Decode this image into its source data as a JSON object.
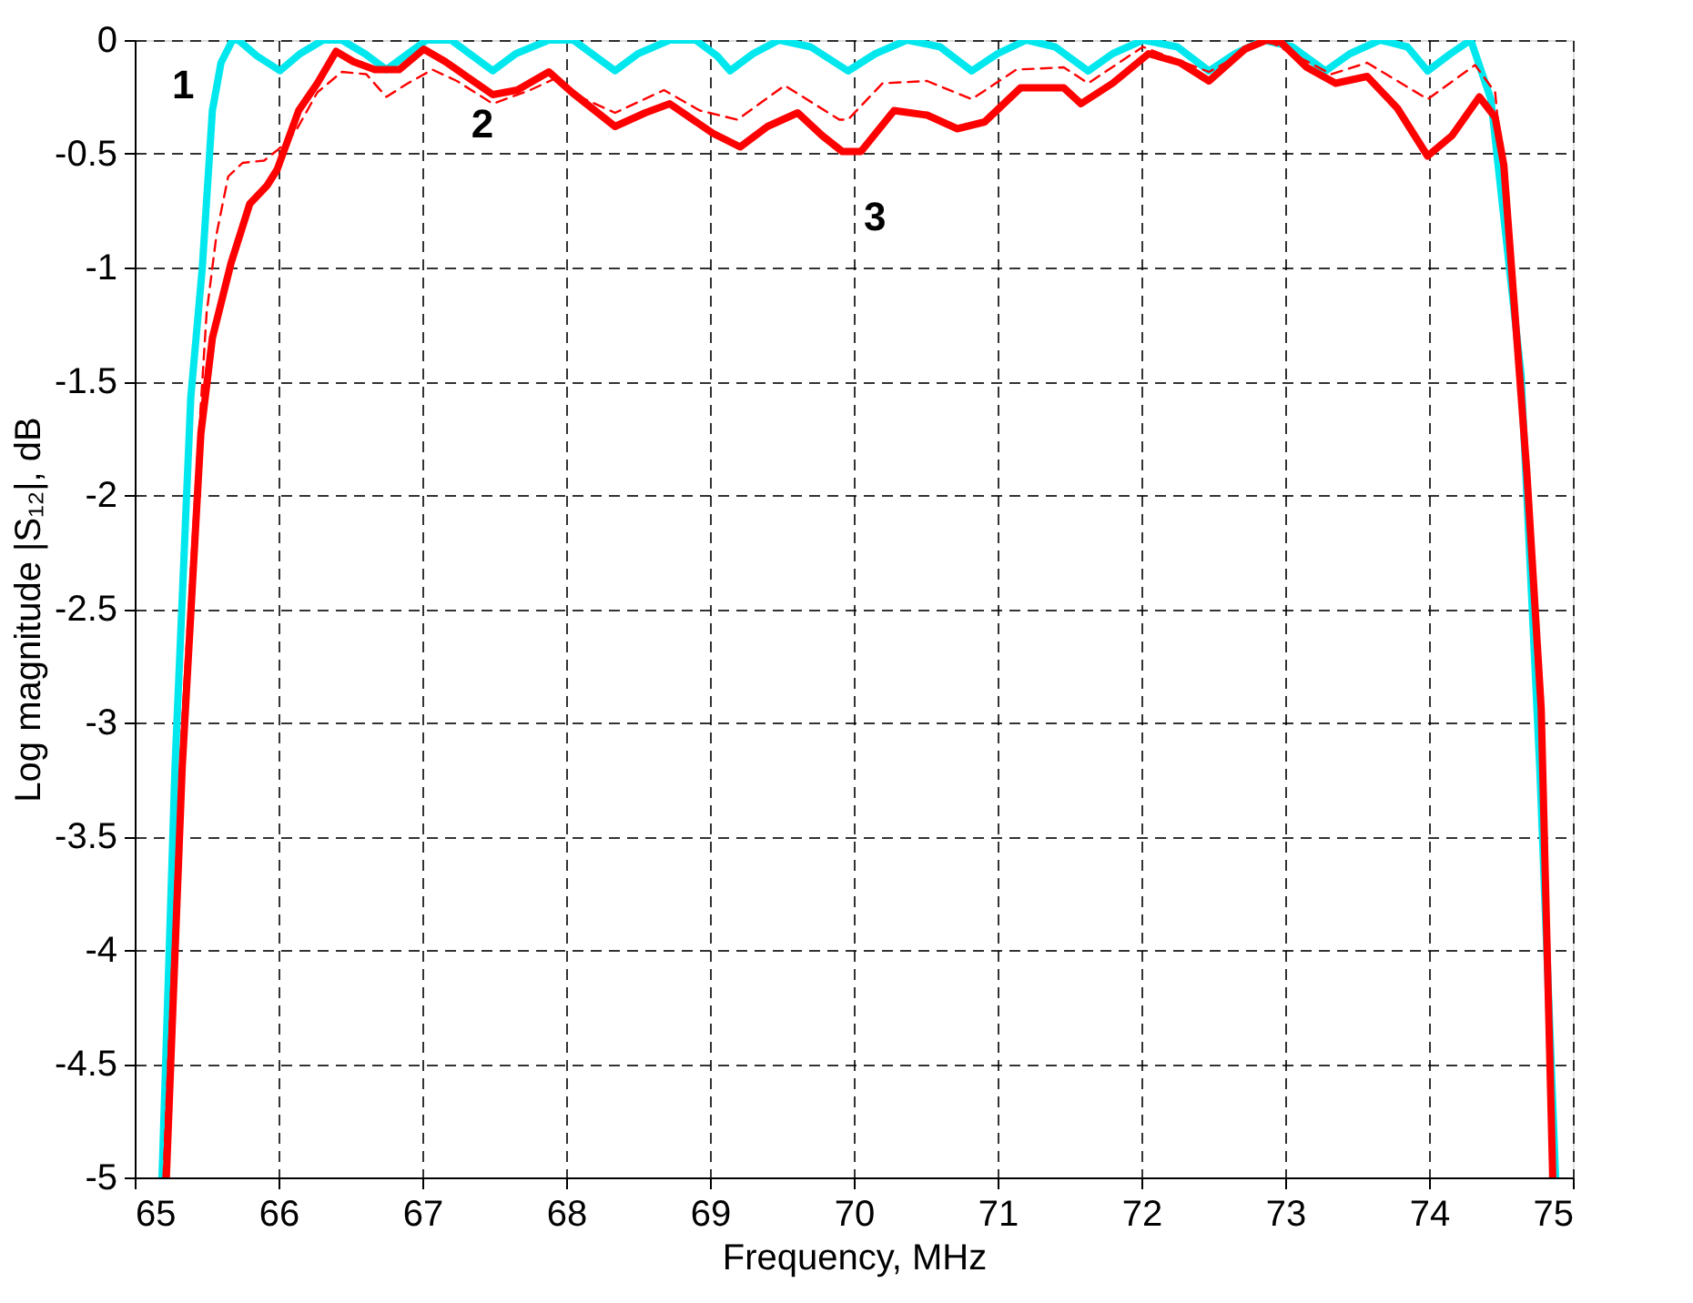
{
  "chart_data": {
    "type": "line",
    "xlabel": "Frequency, MHz",
    "ylabel": "Log magnitude |S₁₂|, dB",
    "xlim": [
      65,
      75
    ],
    "xticks": [
      65,
      66,
      67,
      68,
      69,
      70,
      71,
      72,
      73,
      74,
      75
    ],
    "ylim": [
      -5,
      0
    ],
    "yticks": [
      -5,
      -4.5,
      -4,
      -3.5,
      -3,
      -2.5,
      -2,
      -1.5,
      -1,
      -0.5,
      0
    ],
    "grid": true,
    "legend": false,
    "marker": "none",
    "series": [
      {
        "name": "1",
        "color": "#00e8ee",
        "line_style": "solid",
        "x": [
          65.19,
          65.28,
          65.39,
          65.47,
          65.54,
          65.6,
          65.68,
          65.72,
          65.85,
          66.01,
          66.15,
          66.31,
          66.44,
          66.6,
          66.75,
          66.9,
          67.03,
          67.2,
          67.35,
          67.49,
          67.65,
          67.88,
          68.05,
          68.2,
          68.34,
          68.5,
          68.72,
          68.9,
          69.05,
          69.14,
          69.3,
          69.48,
          69.7,
          69.96,
          70.15,
          70.37,
          70.6,
          70.82,
          71.0,
          71.2,
          71.4,
          71.63,
          71.8,
          72.01,
          72.25,
          72.47,
          72.65,
          72.85,
          73.05,
          73.28,
          73.45,
          73.66,
          73.85,
          73.99,
          74.15,
          74.29,
          74.43,
          74.64,
          74.77,
          74.88
        ],
        "values": [
          -5,
          -3.2,
          -1.57,
          -1.0,
          -0.31,
          -0.1,
          0,
          0,
          -0.07,
          -0.135,
          -0.06,
          0,
          0,
          -0.06,
          -0.13,
          -0.06,
          0,
          0,
          -0.07,
          -0.135,
          -0.06,
          0,
          0,
          -0.07,
          -0.135,
          -0.06,
          0,
          0,
          -0.07,
          -0.135,
          -0.06,
          0,
          -0.03,
          -0.136,
          -0.06,
          0,
          -0.03,
          -0.136,
          -0.06,
          0,
          -0.03,
          -0.136,
          -0.06,
          0,
          -0.03,
          -0.136,
          -0.06,
          0,
          -0.03,
          -0.136,
          -0.06,
          0,
          -0.03,
          -0.136,
          -0.06,
          0,
          -0.26,
          -1.47,
          -3.2,
          -5
        ]
      },
      {
        "name": "2",
        "color": "#ff0000",
        "line_style": "dashed",
        "x": [
          65.2,
          65.33,
          65.43,
          65.5,
          65.57,
          65.65,
          65.75,
          65.9,
          66.0,
          66.12,
          66.27,
          66.44,
          66.61,
          66.75,
          66.9,
          67.07,
          67.24,
          67.49,
          67.75,
          67.92,
          68.13,
          68.34,
          68.68,
          68.93,
          69.19,
          69.52,
          69.9,
          69.96,
          70.2,
          70.51,
          70.82,
          71.13,
          71.46,
          71.63,
          72.01,
          72.47,
          72.87,
          73.32,
          73.57,
          73.99,
          74.32,
          74.46,
          74.6,
          74.7,
          74.78,
          74.86
        ],
        "values": [
          -5,
          -3.0,
          -1.9,
          -1.2,
          -0.85,
          -0.6,
          -0.54,
          -0.53,
          -0.48,
          -0.4,
          -0.23,
          -0.14,
          -0.15,
          -0.25,
          -0.19,
          -0.13,
          -0.18,
          -0.28,
          -0.22,
          -0.17,
          -0.26,
          -0.32,
          -0.22,
          -0.31,
          -0.35,
          -0.2,
          -0.35,
          -0.35,
          -0.19,
          -0.18,
          -0.26,
          -0.13,
          -0.12,
          -0.19,
          -0.03,
          -0.14,
          0,
          -0.15,
          -0.1,
          -0.26,
          -0.11,
          -0.23,
          -1.2,
          -2.0,
          -2.94,
          -5
        ]
      },
      {
        "name": "3",
        "color": "#ff0000",
        "line_style": "solid",
        "x": [
          65.22,
          65.33,
          65.46,
          65.54,
          65.67,
          65.8,
          65.92,
          65.99,
          66.14,
          66.27,
          66.4,
          66.52,
          66.67,
          66.84,
          67.01,
          67.16,
          67.49,
          67.66,
          67.88,
          68.04,
          68.34,
          68.55,
          68.72,
          69.02,
          69.21,
          69.4,
          69.61,
          69.78,
          69.92,
          70.05,
          70.28,
          70.51,
          70.72,
          70.91,
          71.16,
          71.46,
          71.58,
          71.8,
          72.05,
          72.27,
          72.47,
          72.72,
          72.87,
          72.97,
          73.15,
          73.35,
          73.57,
          73.78,
          73.99,
          74.16,
          74.35,
          74.46,
          74.52,
          74.68,
          74.78,
          74.86
        ],
        "values": [
          -5,
          -3.2,
          -1.73,
          -1.31,
          -0.98,
          -0.72,
          -0.64,
          -0.57,
          -0.31,
          -0.19,
          -0.05,
          -0.095,
          -0.13,
          -0.13,
          -0.04,
          -0.095,
          -0.24,
          -0.22,
          -0.14,
          -0.23,
          -0.38,
          -0.32,
          -0.28,
          -0.41,
          -0.47,
          -0.38,
          -0.32,
          -0.42,
          -0.49,
          -0.49,
          -0.31,
          -0.33,
          -0.39,
          -0.36,
          -0.21,
          -0.21,
          -0.28,
          -0.19,
          -0.06,
          -0.1,
          -0.18,
          -0.04,
          0,
          -0.01,
          -0.12,
          -0.19,
          -0.16,
          -0.3,
          -0.51,
          -0.42,
          -0.25,
          -0.34,
          -0.55,
          -1.9,
          -2.94,
          -5
        ]
      }
    ]
  }
}
